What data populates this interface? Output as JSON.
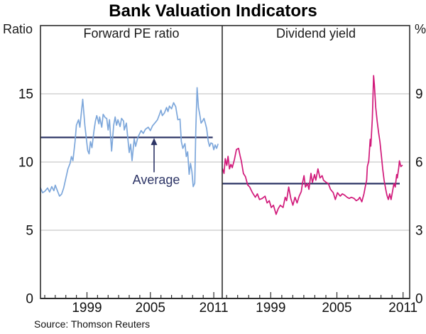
{
  "title": "Bank Valuation Indicators",
  "source": "Source: Thomson Reuters",
  "axis_units": {
    "left": "Ratio",
    "right": "%"
  },
  "colors": {
    "pe_line": "#7DA7DB",
    "dy_line": "#D1197A",
    "average": "#2D3566",
    "grid": "#C9C9C9",
    "frame": "#2E2E2E",
    "text": "#111111"
  },
  "chart_data": [
    {
      "type": "line",
      "panel": "left",
      "title": "Forward PE ratio",
      "ylabel": "Ratio",
      "xlim": [
        1994.6,
        2011.8
      ],
      "ylim": [
        0,
        20
      ],
      "yticks": [
        0,
        5,
        10,
        15
      ],
      "xticks_labeled": [
        1999,
        2005,
        2011
      ],
      "grid": true,
      "average": {
        "value": 11.8,
        "t_start": 1994.6,
        "t_end": 2010.9
      },
      "annotation": {
        "text": "Average",
        "arrow_t": 2005.35,
        "arrow_v_from": 9.25,
        "arrow_v_to": 11.4
      },
      "series": [
        {
          "name": "Forward PE ratio",
          "color_key": "pe_line",
          "points": [
            [
              1994.6,
              8.1
            ],
            [
              1994.8,
              7.75
            ],
            [
              1995.0,
              7.85
            ],
            [
              1995.27,
              8.1
            ],
            [
              1995.47,
              7.8
            ],
            [
              1995.67,
              8.2
            ],
            [
              1995.87,
              7.9
            ],
            [
              1996.0,
              8.3
            ],
            [
              1996.2,
              7.9
            ],
            [
              1996.4,
              7.5
            ],
            [
              1996.6,
              7.65
            ],
            [
              1996.8,
              8.1
            ],
            [
              1997.0,
              8.8
            ],
            [
              1997.2,
              9.5
            ],
            [
              1997.4,
              9.9
            ],
            [
              1997.53,
              10.4
            ],
            [
              1997.67,
              10.1
            ],
            [
              1997.87,
              11.5
            ],
            [
              1998.0,
              12.7
            ],
            [
              1998.2,
              13.1
            ],
            [
              1998.33,
              12.55
            ],
            [
              1998.6,
              14.6
            ],
            [
              1998.8,
              12.7
            ],
            [
              1999.07,
              10.85
            ],
            [
              1999.2,
              10.6
            ],
            [
              1999.33,
              11.5
            ],
            [
              1999.47,
              11.05
            ],
            [
              1999.67,
              12.35
            ],
            [
              1999.8,
              13.0
            ],
            [
              1999.93,
              13.4
            ],
            [
              2000.13,
              12.8
            ],
            [
              2000.2,
              13.3
            ],
            [
              2000.4,
              12.55
            ],
            [
              2000.53,
              13.5
            ],
            [
              2000.73,
              13.25
            ],
            [
              2000.87,
              13.2
            ],
            [
              2001.0,
              12.35
            ],
            [
              2001.13,
              13.1
            ],
            [
              2001.33,
              10.8
            ],
            [
              2001.53,
              12.7
            ],
            [
              2001.67,
              13.3
            ],
            [
              2001.8,
              12.7
            ],
            [
              2001.93,
              13.1
            ],
            [
              2002.13,
              12.6
            ],
            [
              2002.27,
              13.2
            ],
            [
              2002.47,
              13.0
            ],
            [
              2002.53,
              12.35
            ],
            [
              2002.73,
              12.85
            ],
            [
              2002.87,
              11.7
            ],
            [
              2003.0,
              10.7
            ],
            [
              2003.13,
              11.3
            ],
            [
              2003.27,
              10.1
            ],
            [
              2003.47,
              11.7
            ],
            [
              2003.6,
              11.15
            ],
            [
              2003.8,
              11.75
            ],
            [
              2003.93,
              12.0
            ],
            [
              2004.13,
              12.3
            ],
            [
              2004.33,
              12.1
            ],
            [
              2004.53,
              12.4
            ],
            [
              2004.8,
              12.55
            ],
            [
              2005.0,
              12.3
            ],
            [
              2005.2,
              12.65
            ],
            [
              2005.47,
              12.9
            ],
            [
              2005.67,
              13.1
            ],
            [
              2005.87,
              13.5
            ],
            [
              2006.0,
              13.8
            ],
            [
              2006.13,
              13.4
            ],
            [
              2006.33,
              13.6
            ],
            [
              2006.53,
              14.0
            ],
            [
              2006.67,
              13.7
            ],
            [
              2006.8,
              14.1
            ],
            [
              2007.0,
              13.9
            ],
            [
              2007.2,
              14.35
            ],
            [
              2007.4,
              14.05
            ],
            [
              2007.6,
              13.1
            ],
            [
              2007.8,
              13.15
            ],
            [
              2007.93,
              11.5
            ],
            [
              2008.07,
              11.0
            ],
            [
              2008.27,
              11.35
            ],
            [
              2008.4,
              10.4
            ],
            [
              2008.53,
              10.75
            ],
            [
              2008.67,
              9.1
            ],
            [
              2008.8,
              9.9
            ],
            [
              2008.93,
              9.3
            ],
            [
              2009.05,
              8.2
            ],
            [
              2009.2,
              8.45
            ],
            [
              2009.3,
              12.4
            ],
            [
              2009.42,
              15.45
            ],
            [
              2009.55,
              14.0
            ],
            [
              2009.67,
              13.5
            ],
            [
              2009.8,
              12.85
            ],
            [
              2009.93,
              13.0
            ],
            [
              2010.07,
              13.2
            ],
            [
              2010.2,
              12.85
            ],
            [
              2010.33,
              12.45
            ],
            [
              2010.47,
              11.55
            ],
            [
              2010.6,
              11.15
            ],
            [
              2010.73,
              11.4
            ],
            [
              2010.87,
              11.35
            ],
            [
              2011.0,
              10.9
            ],
            [
              2011.13,
              11.25
            ],
            [
              2011.27,
              11.0
            ],
            [
              2011.4,
              11.3
            ]
          ]
        }
      ]
    },
    {
      "type": "line",
      "panel": "right",
      "title": "Dividend yield",
      "ylabel": "%",
      "xlim": [
        1994.6,
        2011.6
      ],
      "ylim": [
        0,
        12
      ],
      "yticks": [
        0,
        3,
        6,
        9
      ],
      "xticks_labeled": [
        1999,
        2005,
        2011
      ],
      "grid": true,
      "average": {
        "value": 5.05,
        "t_start": 1994.6,
        "t_end": 2010.7
      },
      "series": [
        {
          "name": "Dividend yield",
          "color_key": "dy_line",
          "points": [
            [
              1994.63,
              5.7
            ],
            [
              1994.76,
              5.5
            ],
            [
              1994.88,
              6.15
            ],
            [
              1995.01,
              5.85
            ],
            [
              1995.13,
              6.25
            ],
            [
              1995.26,
              5.7
            ],
            [
              1995.39,
              5.9
            ],
            [
              1995.51,
              5.75
            ],
            [
              1995.7,
              6.1
            ],
            [
              1995.89,
              6.55
            ],
            [
              1996.08,
              6.6
            ],
            [
              1996.21,
              6.3
            ],
            [
              1996.33,
              6.05
            ],
            [
              1996.52,
              5.5
            ],
            [
              1996.71,
              5.35
            ],
            [
              1996.9,
              5.0
            ],
            [
              1997.09,
              4.9
            ],
            [
              1997.34,
              4.65
            ],
            [
              1997.6,
              4.45
            ],
            [
              1997.79,
              4.6
            ],
            [
              1997.98,
              4.35
            ],
            [
              1998.23,
              4.4
            ],
            [
              1998.48,
              4.5
            ],
            [
              1998.67,
              4.2
            ],
            [
              1998.86,
              4.3
            ],
            [
              1999.05,
              4.0
            ],
            [
              1999.24,
              4.1
            ],
            [
              1999.49,
              3.7
            ],
            [
              1999.68,
              3.95
            ],
            [
              1999.87,
              4.1
            ],
            [
              2000.12,
              4.0
            ],
            [
              2000.31,
              4.45
            ],
            [
              2000.44,
              4.3
            ],
            [
              2000.63,
              4.9
            ],
            [
              2000.82,
              4.4
            ],
            [
              2001.01,
              4.1
            ],
            [
              2001.2,
              4.45
            ],
            [
              2001.39,
              4.2
            ],
            [
              2001.58,
              4.5
            ],
            [
              2001.77,
              4.7
            ],
            [
              2001.89,
              5.1
            ],
            [
              2002.02,
              5.4
            ],
            [
              2002.15,
              4.9
            ],
            [
              2002.34,
              5.05
            ],
            [
              2002.46,
              4.8
            ],
            [
              2002.65,
              5.5
            ],
            [
              2002.78,
              5.1
            ],
            [
              2002.97,
              5.45
            ],
            [
              2003.09,
              5.2
            ],
            [
              2003.28,
              5.7
            ],
            [
              2003.47,
              5.3
            ],
            [
              2003.66,
              5.4
            ],
            [
              2003.79,
              5.2
            ],
            [
              2004.04,
              5.1
            ],
            [
              2004.23,
              5.05
            ],
            [
              2004.42,
              4.8
            ],
            [
              2004.67,
              4.65
            ],
            [
              2004.86,
              4.35
            ],
            [
              2005.05,
              4.65
            ],
            [
              2005.3,
              4.5
            ],
            [
              2005.49,
              4.6
            ],
            [
              2005.68,
              4.55
            ],
            [
              2005.93,
              4.45
            ],
            [
              2006.12,
              4.4
            ],
            [
              2006.31,
              4.45
            ],
            [
              2006.56,
              4.4
            ],
            [
              2006.75,
              4.3
            ],
            [
              2006.94,
              4.35
            ],
            [
              2007.07,
              4.45
            ],
            [
              2007.26,
              4.25
            ],
            [
              2007.45,
              4.6
            ],
            [
              2007.57,
              4.9
            ],
            [
              2007.7,
              5.2
            ],
            [
              2007.76,
              5.8
            ],
            [
              2007.89,
              6.05
            ],
            [
              2008.02,
              7.0
            ],
            [
              2008.08,
              6.7
            ],
            [
              2008.21,
              7.9
            ],
            [
              2008.33,
              9.8
            ],
            [
              2008.4,
              9.4
            ],
            [
              2008.52,
              8.4
            ],
            [
              2008.65,
              7.8
            ],
            [
              2008.78,
              7.3
            ],
            [
              2008.9,
              6.9
            ],
            [
              2009.03,
              6.3
            ],
            [
              2009.15,
              5.7
            ],
            [
              2009.28,
              5.2
            ],
            [
              2009.41,
              4.85
            ],
            [
              2009.53,
              4.55
            ],
            [
              2009.66,
              4.35
            ],
            [
              2009.79,
              4.6
            ],
            [
              2009.91,
              4.35
            ],
            [
              2010.04,
              4.7
            ],
            [
              2010.17,
              5.05
            ],
            [
              2010.29,
              4.9
            ],
            [
              2010.42,
              5.45
            ],
            [
              2010.48,
              5.3
            ],
            [
              2010.61,
              5.75
            ],
            [
              2010.67,
              6.05
            ],
            [
              2010.8,
              5.8
            ],
            [
              2010.92,
              5.85
            ]
          ]
        }
      ]
    }
  ]
}
